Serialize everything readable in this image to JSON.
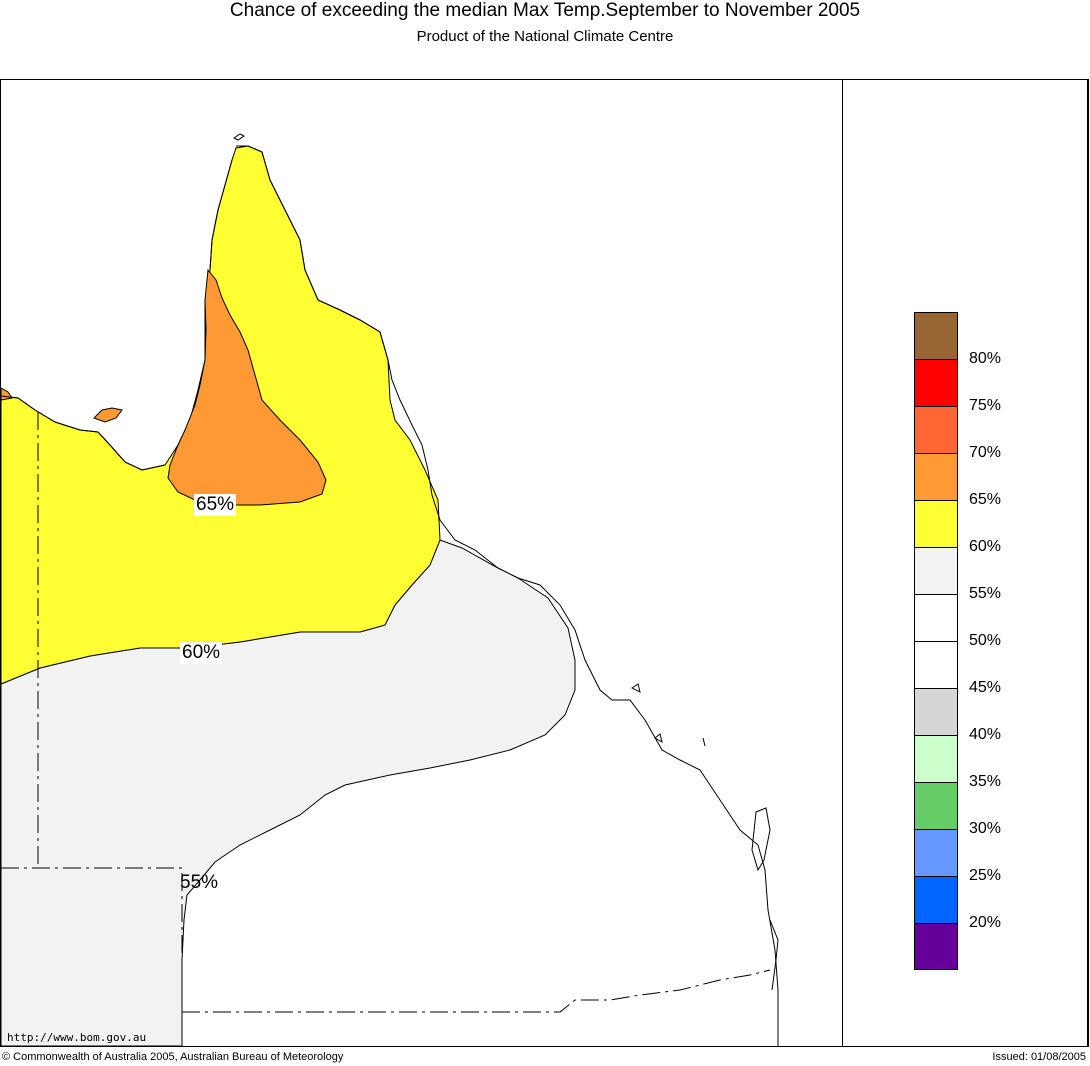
{
  "header": {
    "title": "Chance of exceeding the median Max Temp.September to November 2005",
    "subtitle": "Product of the National Climate Centre"
  },
  "map": {
    "contour_labels": [
      "65%",
      "60%",
      "55%"
    ],
    "colors": {
      "above_65": "#ff9933",
      "60_to_65": "#ffff33",
      "55_to_60": "#f2f2f2",
      "50_to_55": "#ffffff"
    }
  },
  "legend": {
    "items": [
      {
        "label": "80%",
        "color": "#996633"
      },
      {
        "label": "75%",
        "color": "#ff0000"
      },
      {
        "label": "70%",
        "color": "#ff6633"
      },
      {
        "label": "65%",
        "color": "#ff9933"
      },
      {
        "label": "60%",
        "color": "#ffff33"
      },
      {
        "label": "55%",
        "color": "#f2f2f2"
      },
      {
        "label": "50%",
        "color": "#ffffff"
      },
      {
        "label": "45%",
        "color": "#ffffff"
      },
      {
        "label": "40%",
        "color": "#d6d6d6"
      },
      {
        "label": "35%",
        "color": "#ccffcc"
      },
      {
        "label": "30%",
        "color": "#66cc66"
      },
      {
        "label": "25%",
        "color": "#6699ff"
      },
      {
        "label": "20%",
        "color": "#0066ff"
      },
      {
        "label": "",
        "color": "#660099"
      }
    ]
  },
  "footer": {
    "url": "http://www.bom.gov.au",
    "copyright": "© Commonwealth of Australia 2005, Australian Bureau of Meteorology",
    "issued": "Issued: 01/08/2005"
  }
}
